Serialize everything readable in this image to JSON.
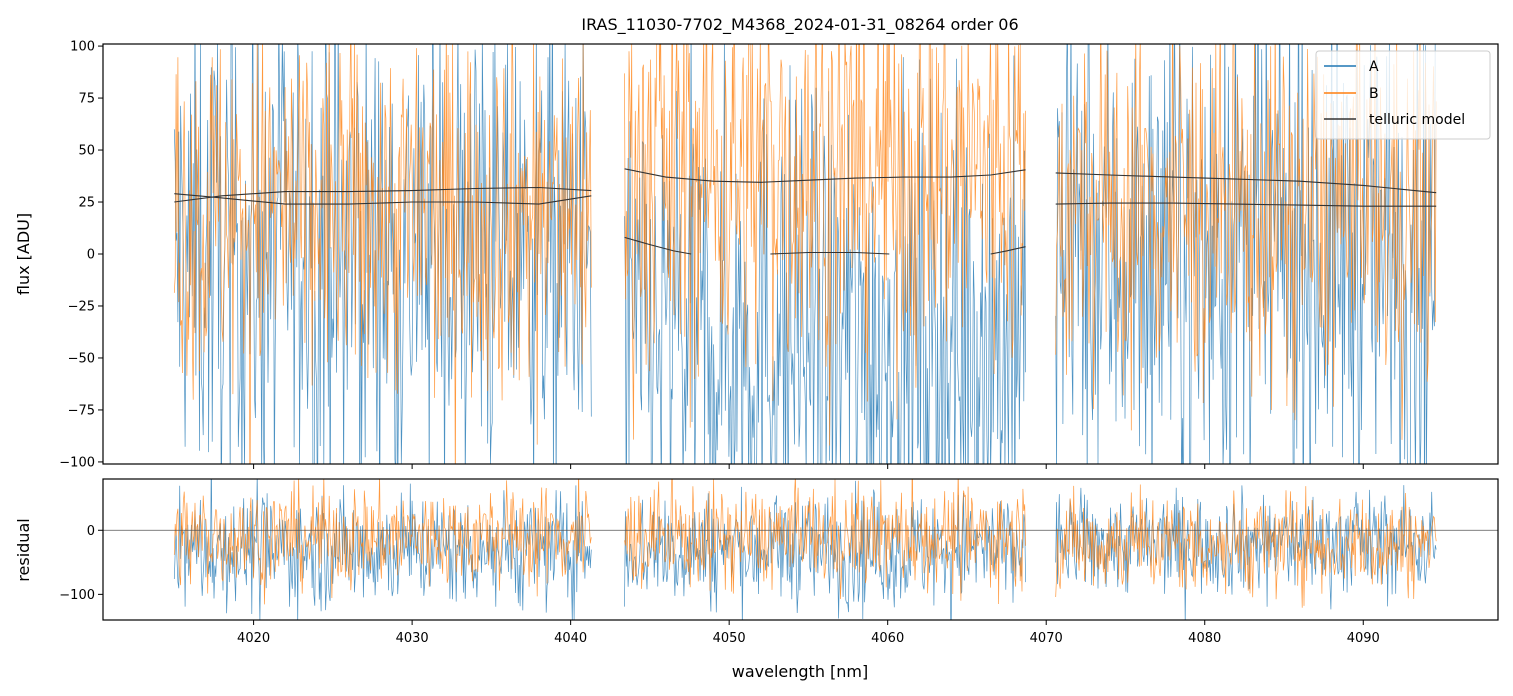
{
  "chart_data": [
    {
      "type": "line",
      "title": "IRAS_11030-7702_M4368_2024-01-31_08264  order 06",
      "xlabel": "",
      "ylabel": "flux [ADU]",
      "xlim": [
        4010.5,
        4098.5
      ],
      "ylim": [
        -101,
        101
      ],
      "yticks": [
        -100,
        -75,
        -50,
        -25,
        0,
        25,
        50,
        75,
        100
      ],
      "ytick_labels": [
        "−100",
        "−75",
        "−50",
        "−25",
        "0",
        "25",
        "50",
        "75",
        "100"
      ],
      "legend": {
        "placement": "top-right",
        "entries": [
          "A",
          "B",
          "telluric model"
        ]
      },
      "segments": [
        [
          4015.0,
          4041.3
        ],
        [
          4043.4,
          4068.7
        ],
        [
          4070.6,
          4094.6
        ]
      ],
      "series": [
        {
          "name": "A",
          "color": "#1f77b4",
          "noise_description": "dense noisy spectrum",
          "segment_levels": [
            [
              0,
              60
            ],
            [
              -40,
              60
            ],
            [
              0,
              60
            ]
          ]
        },
        {
          "name": "B",
          "color": "#ff7f0e",
          "noise_description": "dense noisy spectrum",
          "segment_levels": [
            [
              20,
              45
            ],
            [
              40,
              50
            ],
            [
              20,
              45
            ]
          ]
        },
        {
          "name": "telluric model",
          "color": "#333333",
          "curves": [
            {
              "x": [
                4015.0,
                4018,
                4022,
                4026,
                4030,
                4034,
                4038,
                4041.3
              ],
              "y": [
                29,
                27,
                24,
                24,
                25,
                25,
                24,
                28
              ]
            },
            {
              "x": [
                4015.0,
                4018,
                4022,
                4026,
                4030,
                4034,
                4038,
                4041.3
              ],
              "y": [
                25,
                28,
                30,
                30,
                30.5,
                31.5,
                32,
                30.5
              ]
            },
            {
              "x": [
                4043.4,
                4046,
                4049,
                4052,
                4055,
                4058,
                4061,
                4064,
                4066.5,
                4068.7
              ],
              "y": [
                41,
                37,
                35,
                34.5,
                35.5,
                36.5,
                37,
                37,
                38,
                40.5
              ]
            },
            {
              "x": [
                4043.4,
                4045,
                4046.5,
                4047.6
              ],
              "y": [
                8,
                4.5,
                1.5,
                0
              ]
            },
            {
              "x": [
                4052.6,
                4055,
                4058,
                4060.1
              ],
              "y": [
                0,
                0.7,
                0.7,
                0
              ]
            },
            {
              "x": [
                4066.5,
                4067.5,
                4068.7
              ],
              "y": [
                0,
                1.5,
                3.5
              ]
            },
            {
              "x": [
                4070.6,
                4074,
                4078,
                4082,
                4086,
                4090,
                4094.6
              ],
              "y": [
                39,
                38,
                37,
                36,
                35,
                33,
                29.5
              ]
            },
            {
              "x": [
                4070.6,
                4074,
                4078,
                4082,
                4086,
                4090,
                4094.6
              ],
              "y": [
                24,
                24.5,
                24.5,
                24,
                23.5,
                23,
                23
              ]
            }
          ]
        }
      ]
    },
    {
      "type": "line",
      "title": "",
      "xlabel": "wavelength [nm]",
      "ylabel": "residual",
      "xlim": [
        4010.5,
        4098.5
      ],
      "ylim": [
        -140,
        80
      ],
      "xticks": [
        4020,
        4030,
        4040,
        4050,
        4060,
        4070,
        4080,
        4090
      ],
      "xtick_labels": [
        "4020",
        "4030",
        "4040",
        "4050",
        "4060",
        "4070",
        "4080",
        "4090"
      ],
      "yticks": [
        -100,
        0
      ],
      "ytick_labels": [
        "−100",
        "0"
      ],
      "reference_line": 0,
      "series": [
        {
          "name": "A",
          "color": "#1f77b4",
          "segment_levels": [
            [
              -30,
              45
            ],
            [
              -30,
              45
            ],
            [
              -20,
              40
            ]
          ]
        },
        {
          "name": "B",
          "color": "#ff7f0e",
          "segment_levels": [
            [
              -10,
              40
            ],
            [
              -10,
              40
            ],
            [
              -20,
              40
            ]
          ]
        }
      ]
    }
  ]
}
